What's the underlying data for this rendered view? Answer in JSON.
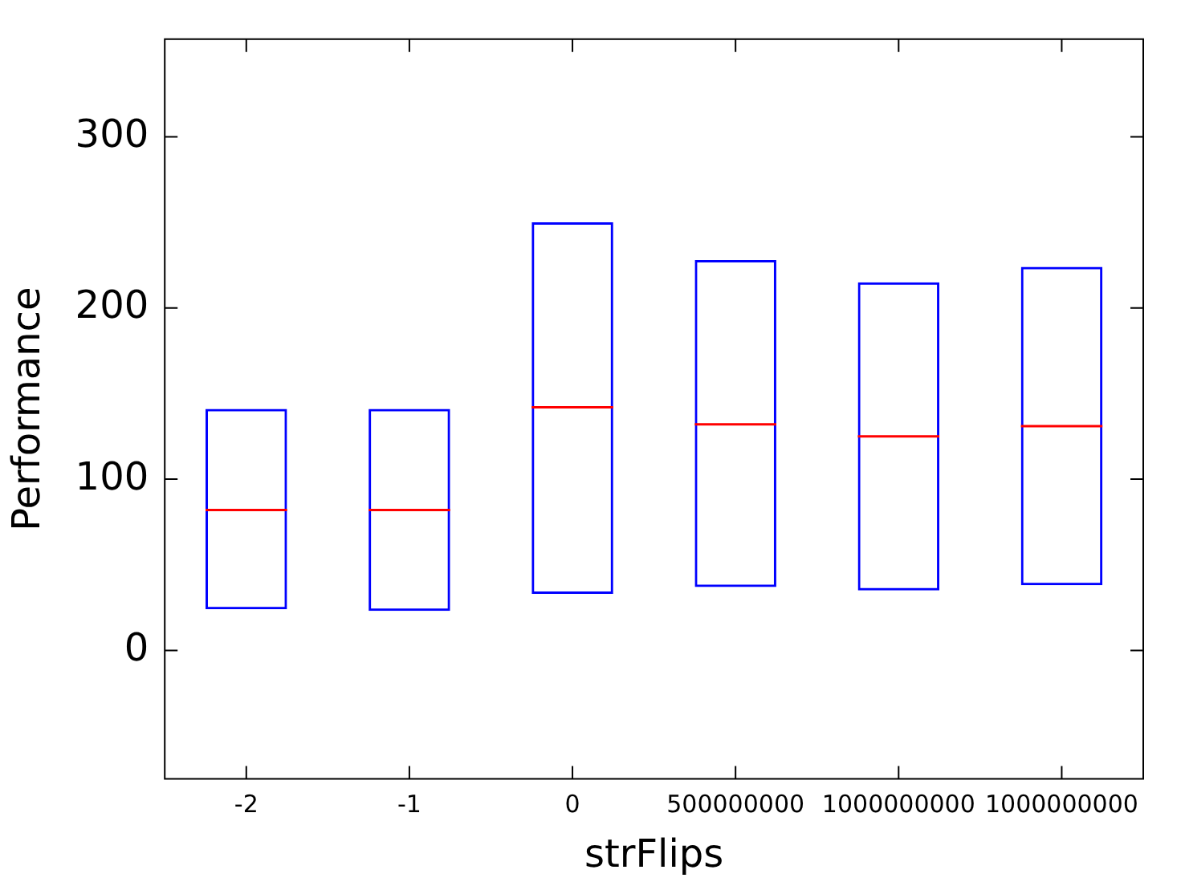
{
  "chart_data": {
    "type": "box",
    "xlabel": "strFlips",
    "ylabel": "Performance",
    "categories": [
      "-2",
      "-1",
      "0",
      "500000000",
      "1000000000",
      "1000000000"
    ],
    "series": [
      {
        "color": "#0000ff",
        "boxes": [
          {
            "low": 24,
            "q1": 24,
            "median": 82,
            "q3": 141,
            "high": 141
          },
          {
            "low": 23,
            "q1": 23,
            "median": 82,
            "q3": 141,
            "high": 141
          },
          {
            "low": 33,
            "q1": 33,
            "median": 142,
            "q3": 250,
            "high": 250
          },
          {
            "low": 37,
            "q1": 37,
            "median": 132,
            "q3": 228,
            "high": 228
          },
          {
            "low": 35,
            "q1": 35,
            "median": 125,
            "q3": 215,
            "high": 215
          },
          {
            "low": 38,
            "q1": 38,
            "median": 131,
            "q3": 224,
            "high": 224
          }
        ]
      }
    ],
    "ylim": [
      -75,
      357
    ],
    "yticks": [
      0,
      100,
      200,
      300
    ],
    "grid": false,
    "legend": false
  }
}
